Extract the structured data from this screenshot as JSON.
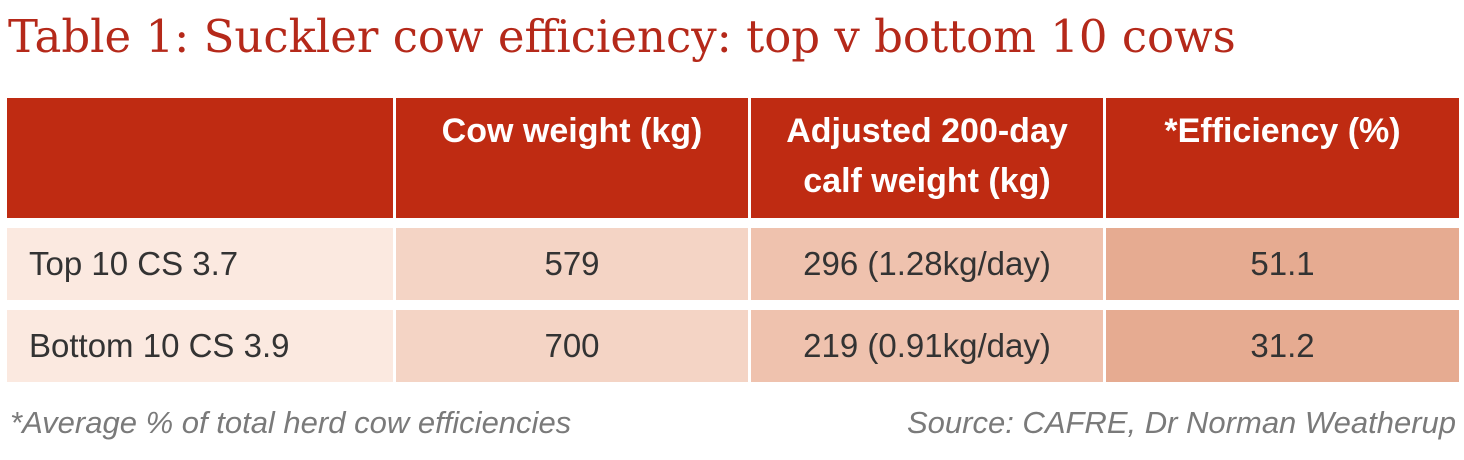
{
  "title": "Table 1: Suckler cow efficiency: top v bottom 10 cows",
  "colors": {
    "title": "#b5291a",
    "header_bg": "#bf2b12",
    "row_label_bg": "#fbe9e0",
    "col1_bg": "#f4d4c5",
    "col2_bg": "#efc2ae",
    "col3_bg": "#e6ab91"
  },
  "table": {
    "headers": [
      "",
      "Cow weight (kg)",
      [
        "Adjusted 200-day",
        "calf weight (kg)"
      ],
      "*Efficiency (%)"
    ],
    "rows": [
      [
        "Top 10 CS 3.7",
        "579",
        "296 (1.28kg/day)",
        "51.1"
      ],
      [
        "Bottom 10 CS 3.9",
        "700",
        "219 (0.91kg/day)",
        "31.2"
      ]
    ]
  },
  "footnote": "*Average % of total herd cow efficiencies",
  "source": "Source: CAFRE, Dr Norman Weatherup"
}
